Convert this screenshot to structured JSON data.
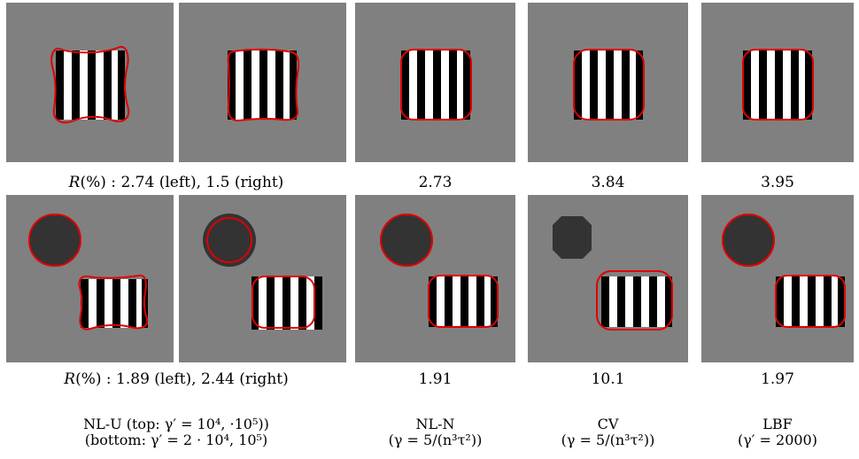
{
  "row1": {
    "caption_nlu_prefix": "R",
    "caption_nlu_rest": "(%) : 2.74 (left), 1.5 (right)",
    "nln": "2.73",
    "cv": "3.84",
    "lbf": "3.95"
  },
  "row2": {
    "caption_nlu_prefix": "R",
    "caption_nlu_rest": "(%) : 1.89 (left), 2.44 (right)",
    "nln": "1.91",
    "cv": "10.1",
    "lbf": "1.97"
  },
  "methods": {
    "nlu_line1": "NL-U (top: γ′ = 10⁴, ·10⁵))",
    "nlu_line2": "(bottom: γ′ = 2 · 10⁴, 10⁵)",
    "nln_name": "NL-N",
    "nln_param": "(γ = 5/(n³τ²))",
    "cv_name": "CV",
    "cv_param": "(γ = 5/(n³τ²))",
    "lbf_name": "LBF",
    "lbf_param": "(γ′ = 2000)"
  },
  "colors": {
    "background": "#808080",
    "contour": "#e00000",
    "disk": "#333333",
    "stripe_dark": "#000000",
    "stripe_light": "#ffffff"
  }
}
